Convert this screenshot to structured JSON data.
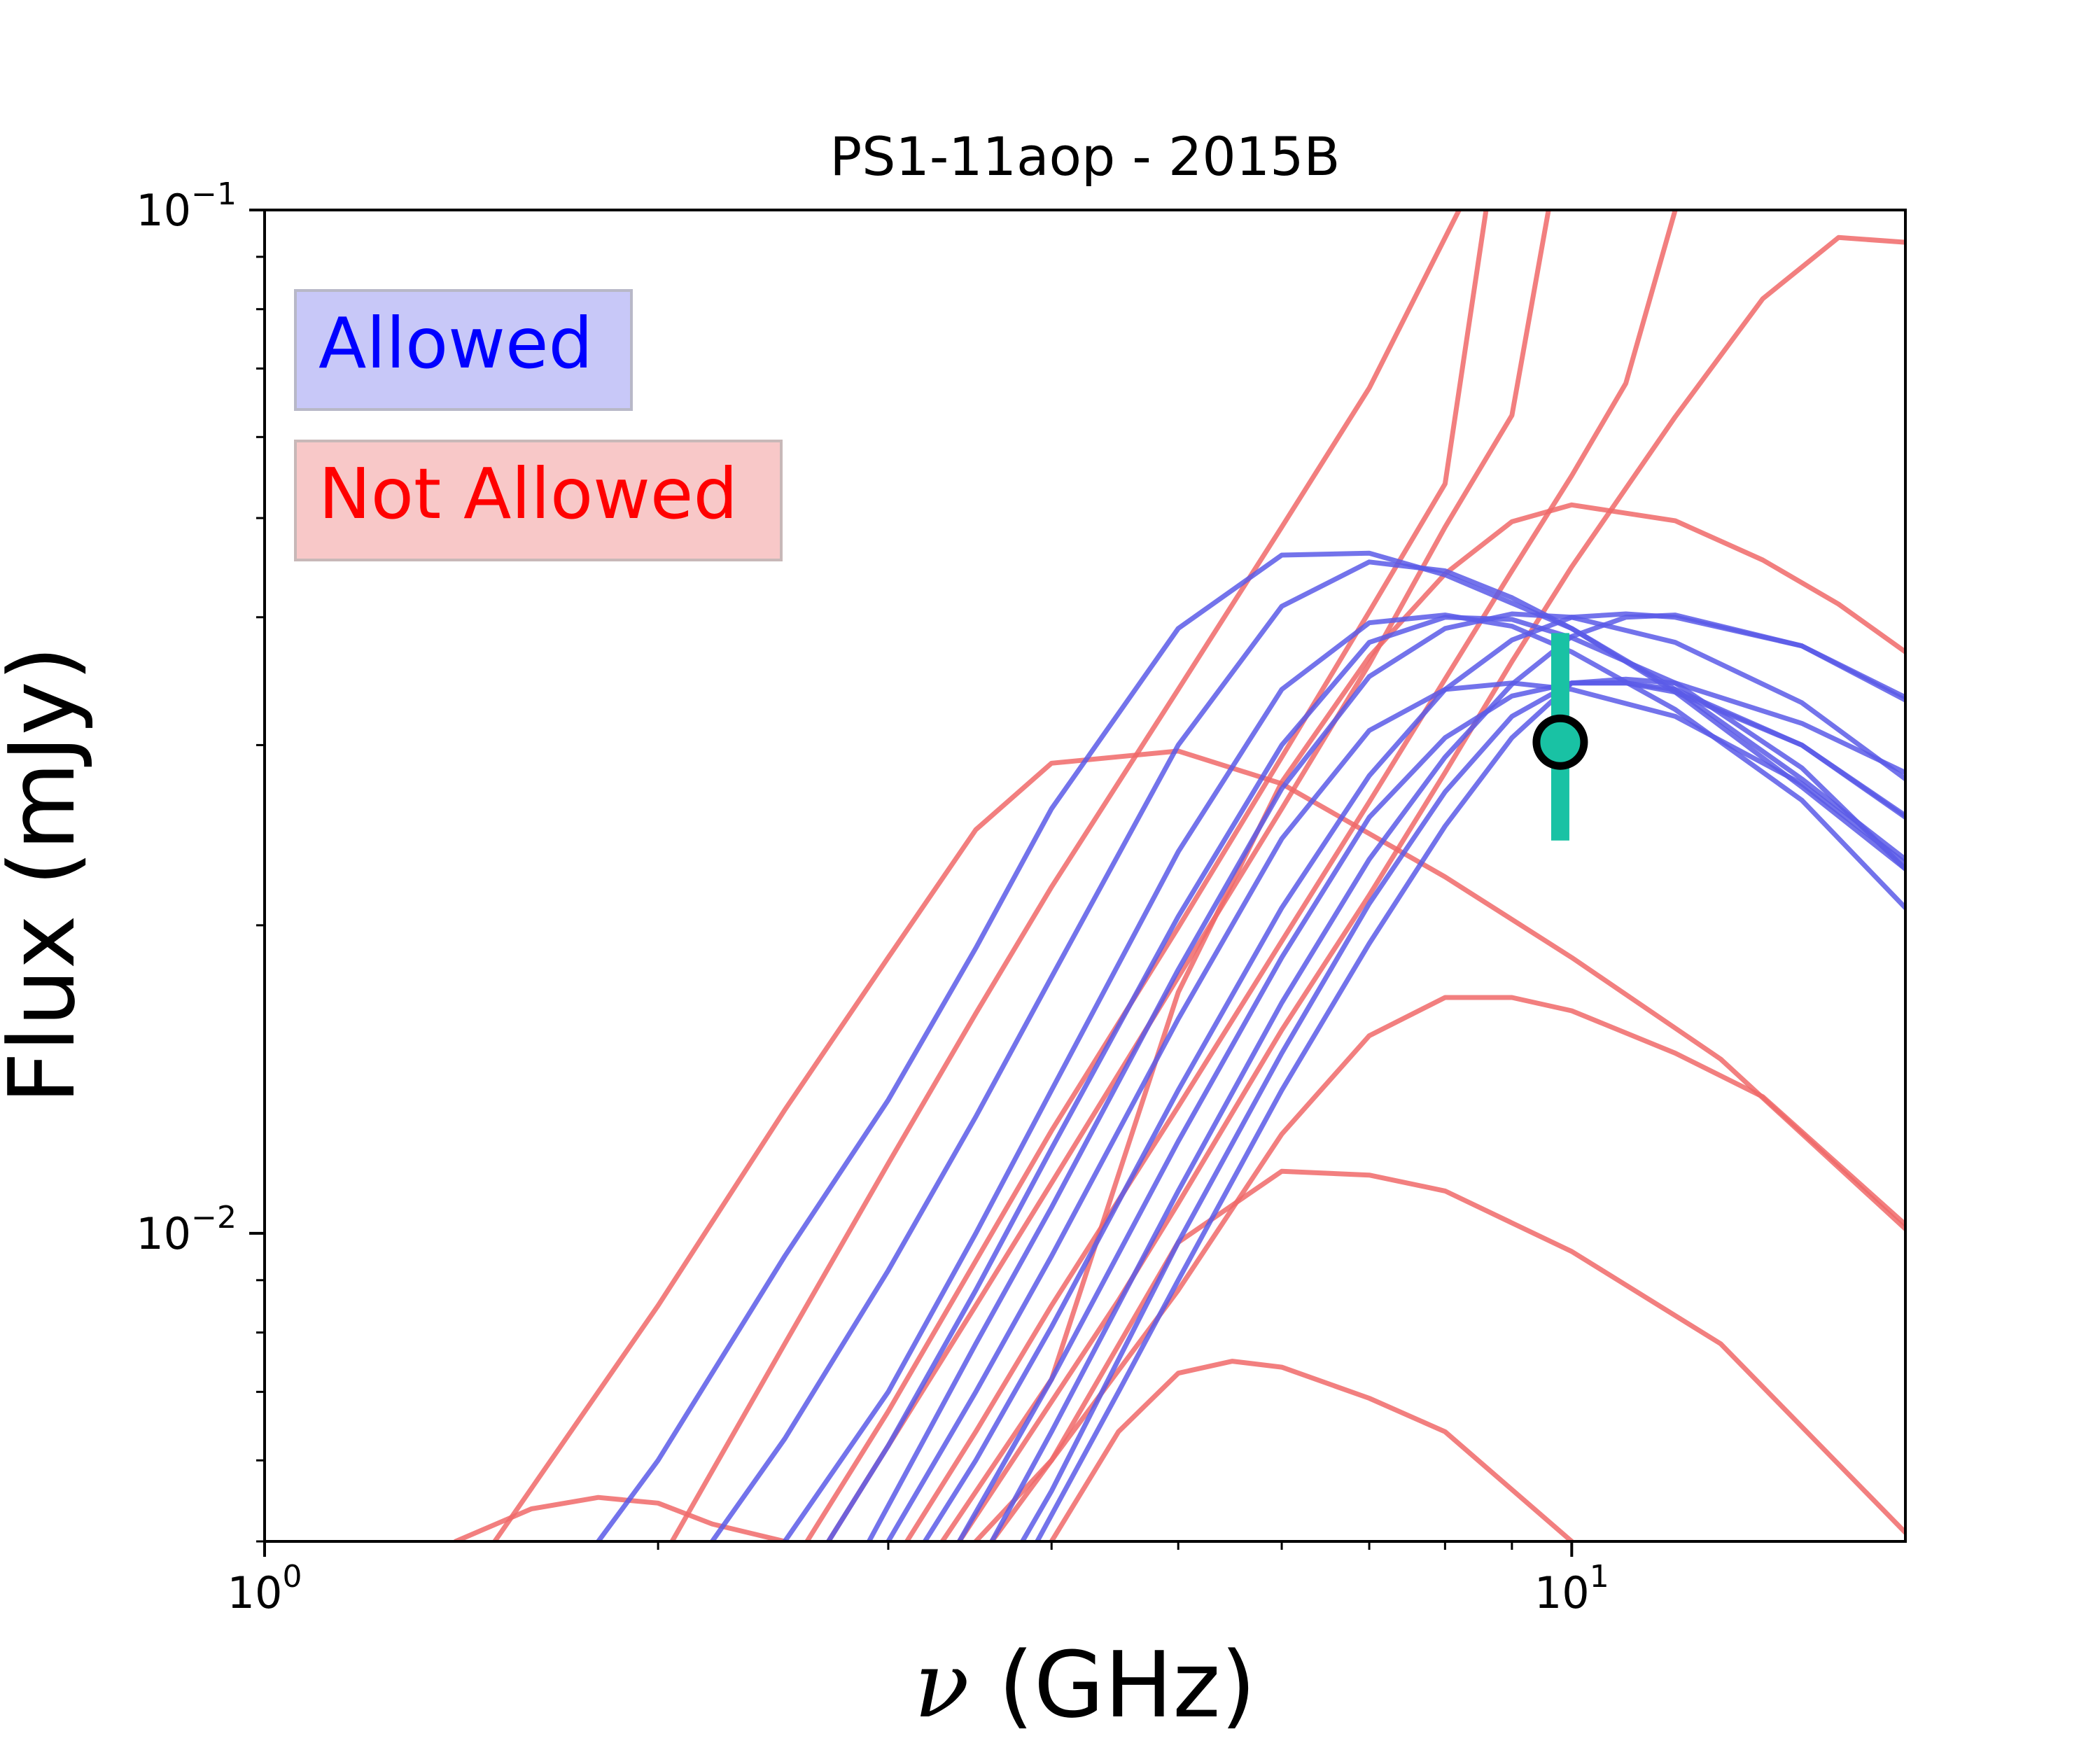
{
  "chart_data": {
    "type": "line",
    "title": "PS1-11aop - 2015B",
    "xlabel_symbol": "ν",
    "xlabel_unit": " (GHz)",
    "ylabel": "Flux (mJy)",
    "xscale": "log",
    "yscale": "log",
    "xlim": [
      1.0,
      18.0
    ],
    "ylim": [
      0.005,
      0.1
    ],
    "x_ticks": [
      {
        "value": 1,
        "base": "10",
        "exp": "0"
      },
      {
        "value": 10,
        "base": "10",
        "exp": "1"
      }
    ],
    "y_ticks": [
      {
        "value": 0.01,
        "base": "10",
        "exp": "−2"
      },
      {
        "value": 0.1,
        "base": "10",
        "exp": "−1"
      }
    ],
    "legend": {
      "placement": "top-left",
      "entries": [
        {
          "label": "Allowed",
          "text_color": "#0000ff",
          "box_color": "#c8c8f8"
        },
        {
          "label": "Not Allowed",
          "text_color": "#ff0000",
          "box_color": "#f8c8c8"
        }
      ]
    },
    "colors": {
      "allowed": "#5a5ae8",
      "not_allowed": "#f06868",
      "point": "#19c2a4"
    },
    "measurement": {
      "x": 9.8,
      "y": 0.0302,
      "yerr_low": 0.0242,
      "yerr_high": 0.0386
    },
    "series": [
      {
        "group": "not_allowed",
        "x": [
          1.4,
          1.6,
          1.8,
          2.0,
          2.2,
          2.5
        ],
        "y": [
          0.005,
          0.00538,
          0.00552,
          0.00545,
          0.0052,
          0.005
        ]
      },
      {
        "group": "not_allowed",
        "x": [
          1.5,
          2.0,
          2.5,
          3.0,
          3.5,
          4.0,
          5.0,
          6.0,
          8.0,
          10.0,
          13.0,
          18.0
        ],
        "y": [
          0.005,
          0.0085,
          0.0132,
          0.0186,
          0.0248,
          0.0288,
          0.0296,
          0.0275,
          0.0223,
          0.0186,
          0.0148,
          0.0101
        ]
      },
      {
        "group": "not_allowed",
        "x": [
          2.05,
          2.5,
          3.0,
          3.5,
          4.0,
          5.0,
          6.0,
          7.0,
          8.2
        ],
        "y": [
          0.005,
          0.0078,
          0.0117,
          0.0164,
          0.0218,
          0.034,
          0.049,
          0.067,
          0.1
        ]
      },
      {
        "group": "not_allowed",
        "x": [
          2.6,
          3.0,
          3.5,
          4.0,
          5.0,
          6.0,
          7.0,
          8.0,
          8.6
        ],
        "y": [
          0.005,
          0.0067,
          0.0094,
          0.0126,
          0.0199,
          0.0292,
          0.0405,
          0.054,
          0.1
        ]
      },
      {
        "group": "not_allowed",
        "x": [
          2.7,
          3.0,
          3.5,
          4.0,
          5.0,
          6.0,
          7.0,
          8.0,
          9.0,
          9.6
        ],
        "y": [
          0.005,
          0.0062,
          0.0085,
          0.0112,
          0.0178,
          0.026,
          0.036,
          0.049,
          0.063,
          0.1
        ]
      },
      {
        "group": "not_allowed",
        "x": [
          3.1,
          3.5,
          4.0,
          5.0,
          6.0,
          7.0,
          8.0,
          9.0,
          10.0,
          11.0,
          12.0
        ],
        "y": [
          0.005,
          0.0064,
          0.0085,
          0.0133,
          0.0193,
          0.0264,
          0.0348,
          0.0444,
          0.055,
          0.0677,
          0.1
        ]
      },
      {
        "group": "not_allowed",
        "x": [
          3.4,
          3.8,
          4.5,
          5.0,
          6.0,
          7.0,
          8.0,
          9.0,
          10.0,
          12.0,
          14.0,
          16.0,
          18.0
        ],
        "y": [
          0.005,
          0.0062,
          0.0086,
          0.0107,
          0.0158,
          0.0214,
          0.0282,
          0.0362,
          0.0448,
          0.0628,
          0.0819,
          0.094,
          0.093
        ]
      },
      {
        "group": "not_allowed",
        "x": [
          3.3,
          4.0,
          5.0,
          6.0,
          7.0,
          8.0,
          9.0,
          10.0,
          12.0,
          14.0,
          16.0,
          18.0
        ],
        "y": [
          0.005,
          0.0072,
          0.0172,
          0.0276,
          0.0366,
          0.0441,
          0.0496,
          0.0515,
          0.0497,
          0.0455,
          0.0412,
          0.037
        ]
      },
      {
        "group": "not_allowed",
        "x": [
          3.5,
          4.0,
          5.0,
          6.0,
          7.0,
          8.0,
          9.0,
          10.0,
          12.0,
          14.0,
          18.0
        ],
        "y": [
          0.005,
          0.006,
          0.0088,
          0.0125,
          0.0156,
          0.017,
          0.017,
          0.0165,
          0.015,
          0.0136,
          0.0102
        ]
      },
      {
        "group": "not_allowed",
        "x": [
          3.6,
          4.0,
          5.0,
          6.0,
          7.0,
          8.0,
          10.0,
          13.0,
          18.0
        ],
        "y": [
          0.005,
          0.006,
          0.0098,
          0.0115,
          0.0114,
          0.011,
          0.0096,
          0.0078,
          0.0051
        ]
      },
      {
        "group": "not_allowed",
        "x": [
          4.0,
          4.5,
          5.0,
          5.5,
          6.0,
          7.0,
          8.0,
          10.0
        ],
        "y": [
          0.005,
          0.0064,
          0.0073,
          0.0075,
          0.0074,
          0.0069,
          0.0064,
          0.005
        ]
      },
      {
        "group": "allowed",
        "x": [
          1.8,
          2.0,
          2.5,
          3.0,
          3.5,
          4.0,
          5.0,
          6.0,
          7.0,
          8.0,
          10.0,
          12.0,
          15.0,
          18.0
        ],
        "y": [
          0.005,
          0.006,
          0.0095,
          0.0135,
          0.019,
          0.026,
          0.039,
          0.046,
          0.0462,
          0.044,
          0.039,
          0.034,
          0.0278,
          0.0232
        ]
      },
      {
        "group": "allowed",
        "x": [
          2.2,
          2.5,
          3.0,
          3.5,
          4.0,
          5.0,
          6.0,
          7.0,
          8.0,
          9.0,
          10.0,
          12.0,
          15.0,
          18.0
        ],
        "y": [
          0.005,
          0.0063,
          0.0092,
          0.013,
          0.0178,
          0.03,
          0.041,
          0.0453,
          0.0444,
          0.0418,
          0.039,
          0.0338,
          0.0273,
          0.0227
        ]
      },
      {
        "group": "allowed",
        "x": [
          2.5,
          3.0,
          3.5,
          4.0,
          5.0,
          6.0,
          7.0,
          8.0,
          9.0,
          10.0,
          12.0,
          15.0,
          18.0
        ],
        "y": [
          0.005,
          0.007,
          0.01,
          0.0138,
          0.0236,
          0.034,
          0.0395,
          0.0402,
          0.0392,
          0.037,
          0.0325,
          0.0265,
          0.0208
        ]
      },
      {
        "group": "allowed",
        "x": [
          2.7,
          3.0,
          3.5,
          4.0,
          5.0,
          6.0,
          7.0,
          8.0,
          9.0,
          10.0,
          12.0,
          15.0,
          18.0
        ],
        "y": [
          0.005,
          0.0062,
          0.0088,
          0.0121,
          0.0204,
          0.03,
          0.0378,
          0.04,
          0.0398,
          0.0382,
          0.0345,
          0.0285,
          0.0227
        ]
      },
      {
        "group": "allowed",
        "x": [
          2.9,
          3.5,
          4.0,
          5.0,
          6.0,
          7.0,
          8.0,
          9.0,
          10.0,
          12.0,
          15.0,
          18.0
        ],
        "y": [
          0.005,
          0.0078,
          0.0106,
          0.0181,
          0.0272,
          0.035,
          0.039,
          0.0403,
          0.04,
          0.0378,
          0.033,
          0.0278
        ]
      },
      {
        "group": "allowed",
        "x": [
          3.0,
          3.5,
          4.0,
          5.0,
          6.0,
          7.0,
          8.0,
          9.0,
          10.0,
          12.0,
          15.0,
          18.0
        ],
        "y": [
          0.005,
          0.007,
          0.0095,
          0.0162,
          0.0243,
          0.031,
          0.034,
          0.0345,
          0.034,
          0.032,
          0.0275,
          0.023
        ]
      },
      {
        "group": "allowed",
        "x": [
          3.2,
          3.5,
          4.0,
          5.0,
          6.0,
          7.0,
          8.0,
          9.0,
          10.0,
          11.0,
          12.0,
          15.0,
          18.0
        ],
        "y": [
          0.005,
          0.006,
          0.0081,
          0.0138,
          0.0208,
          0.028,
          0.034,
          0.038,
          0.04,
          0.0403,
          0.04,
          0.0375,
          0.0334
        ]
      },
      {
        "group": "allowed",
        "x": [
          3.4,
          4.0,
          5.0,
          6.0,
          7.0,
          8.0,
          9.0,
          10.0,
          11.0,
          12.0,
          15.0,
          18.0
        ],
        "y": [
          0.005,
          0.0072,
          0.0123,
          0.0186,
          0.0255,
          0.0305,
          0.0335,
          0.0345,
          0.0345,
          0.0338,
          0.03,
          0.0256
        ]
      },
      {
        "group": "allowed",
        "x": [
          3.6,
          4.0,
          5.0,
          6.0,
          7.0,
          8.0,
          9.0,
          10.0,
          11.0,
          12.0,
          15.0,
          18.0
        ],
        "y": [
          0.005,
          0.0064,
          0.011,
          0.0168,
          0.0232,
          0.0292,
          0.0344,
          0.0383,
          0.04,
          0.0402,
          0.0375,
          0.0332
        ]
      },
      {
        "group": "allowed",
        "x": [
          3.8,
          4.0,
          5.0,
          6.0,
          7.0,
          8.0,
          9.0,
          10.0,
          11.0,
          12.0,
          15.0,
          18.0
        ],
        "y": [
          0.005,
          0.0056,
          0.0098,
          0.015,
          0.021,
          0.027,
          0.032,
          0.0345,
          0.0348,
          0.0345,
          0.0315,
          0.0282
        ]
      },
      {
        "group": "allowed",
        "x": [
          3.9,
          4.5,
          5.0,
          6.0,
          7.0,
          8.0,
          9.0,
          10.0,
          11.0,
          12.0,
          15.0,
          18.0
        ],
        "y": [
          0.005,
          0.007,
          0.009,
          0.0138,
          0.0192,
          0.025,
          0.0305,
          0.0345,
          0.0345,
          0.034,
          0.03,
          0.0255
        ]
      }
    ]
  }
}
